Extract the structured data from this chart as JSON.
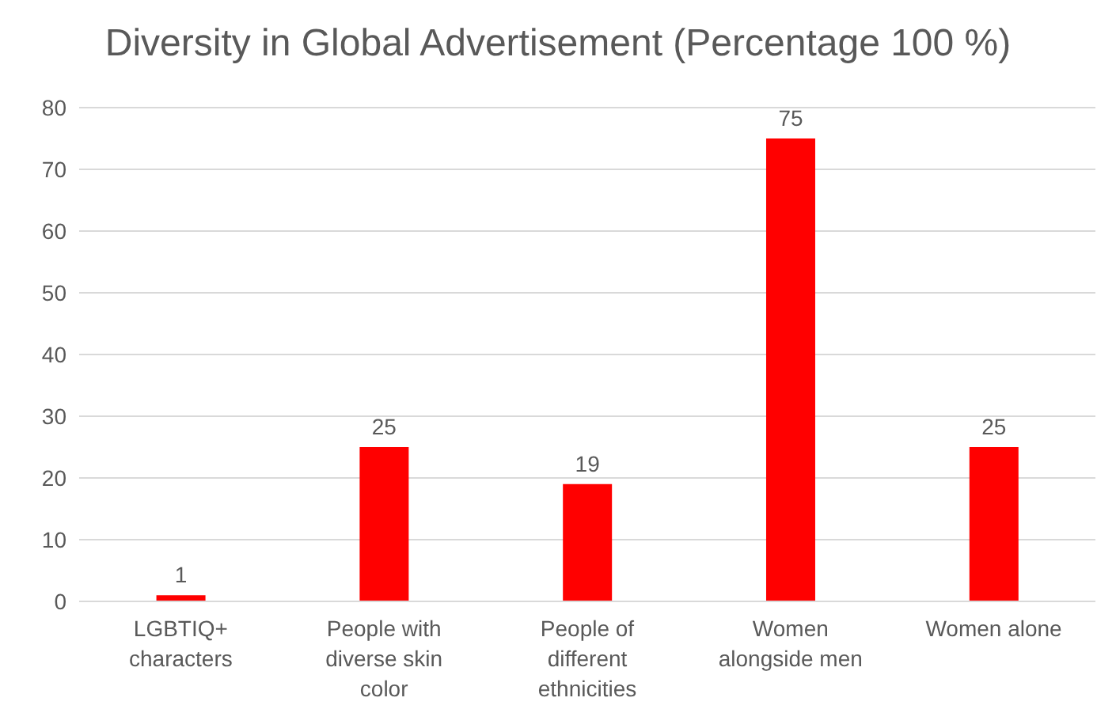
{
  "chart_data": {
    "type": "bar",
    "title": "Diversity in Global Advertisement (Percentage 100 %)",
    "categories": [
      "LGBTIQ+ characters",
      "People with diverse skin color",
      "People of different ethnicities",
      "Women alongside men",
      "Women alone"
    ],
    "values": [
      1,
      25,
      19,
      75,
      25
    ],
    "color": "#ff0000",
    "ylim": [
      0,
      80
    ],
    "yticks": [
      0,
      10,
      20,
      30,
      40,
      50,
      60,
      70,
      80
    ],
    "grid": "y",
    "data_labels": true
  }
}
